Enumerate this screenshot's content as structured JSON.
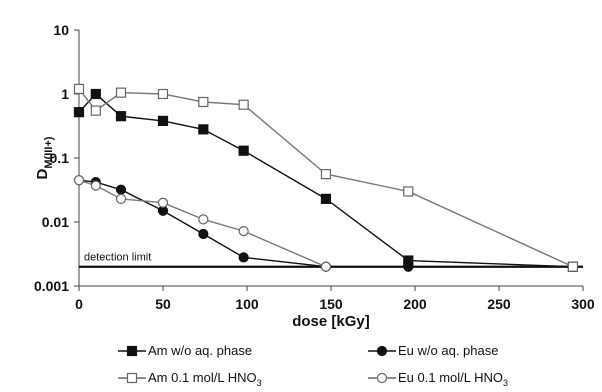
{
  "chart_data": {
    "type": "line",
    "xlabel": "dose [kGy]",
    "ylabel": "D",
    "ylabel_sub": "M(III+)",
    "xlim": [
      0,
      300
    ],
    "ylim": [
      0.001,
      10
    ],
    "y_scale": "log",
    "x_ticks": [
      0,
      50,
      100,
      150,
      200,
      250,
      300
    ],
    "x_tick_labels": [
      "0",
      "50",
      "100",
      "150",
      "200",
      "250",
      "300"
    ],
    "y_ticks": [
      0.001,
      0.01,
      0.1,
      1,
      10
    ],
    "y_tick_labels": [
      "0.001",
      "0.01",
      "0.1",
      "1",
      "10"
    ],
    "grid": false,
    "legend_position": "bottom",
    "series": [
      {
        "name": "Am w/o aq. phase",
        "marker": "filled-square",
        "color": "#111111",
        "x": [
          0,
          10,
          25,
          50,
          74,
          98,
          147,
          196,
          294
        ],
        "y": [
          0.52,
          1.0,
          0.45,
          0.38,
          0.28,
          0.13,
          0.023,
          0.0025,
          0.002
        ]
      },
      {
        "name": "Am 0.1 mol/L HNO3",
        "marker": "open-square",
        "color": "#777777",
        "x": [
          0,
          10,
          25,
          50,
          74,
          98,
          147,
          196,
          294
        ],
        "y": [
          1.2,
          0.55,
          1.05,
          1.0,
          0.75,
          0.68,
          0.056,
          0.03,
          0.002
        ]
      },
      {
        "name": "Eu w/o aq. phase",
        "marker": "filled-circle",
        "color": "#111111",
        "x": [
          0,
          10,
          25,
          50,
          74,
          98,
          147,
          196
        ],
        "y": [
          0.045,
          0.042,
          0.032,
          0.015,
          0.0065,
          0.0028,
          0.002,
          0.002
        ]
      },
      {
        "name": "Eu 0.1 mol/L HNO3",
        "marker": "open-circle",
        "color": "#777777",
        "x": [
          0,
          10,
          25,
          50,
          74,
          98,
          147
        ],
        "y": [
          0.045,
          0.037,
          0.023,
          0.02,
          0.011,
          0.0072,
          0.002
        ]
      }
    ],
    "legend": [
      {
        "label": "Am w/o aq. phase",
        "marker": "filled-square"
      },
      {
        "label": "Eu w/o aq. phase",
        "marker": "filled-circle"
      },
      {
        "label": "Am 0.1 mol/L HNO",
        "sub": "3",
        "marker": "open-square"
      },
      {
        "label": "Eu 0.1 mol/L HNO",
        "sub": "3",
        "marker": "open-circle"
      }
    ],
    "annotations": [
      {
        "text": "detection limit",
        "y": 0.002
      }
    ]
  }
}
